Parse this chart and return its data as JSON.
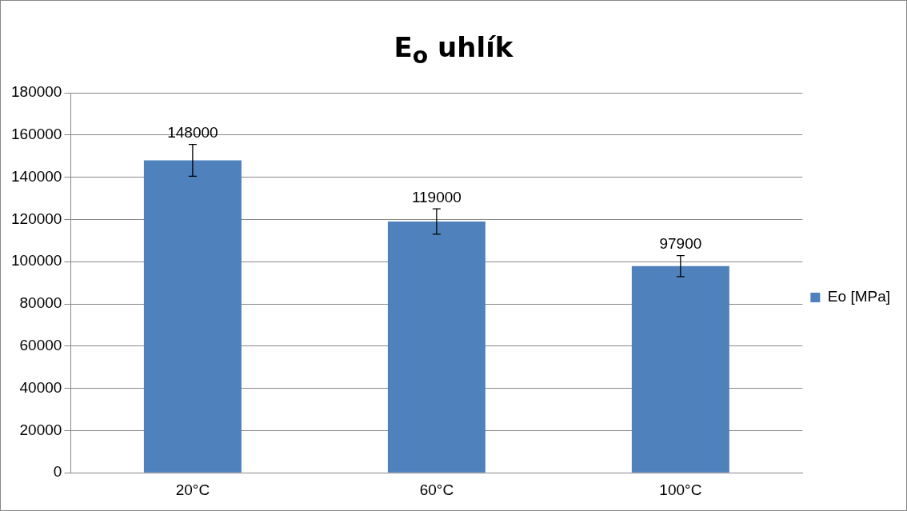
{
  "chart_data": {
    "type": "bar",
    "title": "E$_{o}$ uhlík",
    "categories": [
      "20°C",
      "60°C",
      "100°C"
    ],
    "series": [
      {
        "name": "Eo [MPa]",
        "color": "#4f81bd",
        "values": [
          148000,
          119000,
          97900
        ],
        "errors": [
          7500,
          6000,
          5000
        ]
      }
    ],
    "ylim": [
      0,
      180000
    ],
    "yticks": [
      0,
      20000,
      40000,
      60000,
      80000,
      100000,
      120000,
      140000,
      160000,
      180000
    ],
    "grid": "y",
    "legend": "right",
    "data_labels": true
  }
}
